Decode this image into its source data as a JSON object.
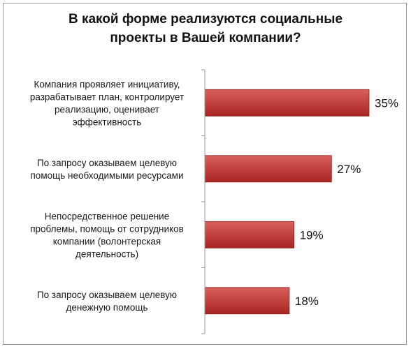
{
  "chart_data": {
    "type": "bar",
    "orientation": "horizontal",
    "title_lines": [
      "В какой форме реализуются социальные",
      "проекты в Вашей компании?"
    ],
    "categories": [
      [
        "Компания проявляет инициативу,",
        "разрабатывает план, контролирует",
        "реализацию, оценивает",
        "эффективность"
      ],
      [
        "По запросу оказываем  целевую",
        "помощь необходимыми ресурсами"
      ],
      [
        "Непосредственное решение",
        "проблемы, помощь от сотрудников",
        "компании (волонтерская",
        "деятельность)"
      ],
      [
        "По запросу оказываем целевую",
        "денежную помощь"
      ]
    ],
    "values": [
      35,
      27,
      19,
      18
    ],
    "value_labels": [
      "35%",
      "27%",
      "19%",
      "18%"
    ],
    "xlim": [
      0,
      40
    ],
    "grid": false,
    "legend": "none",
    "colors": {
      "bar_top": "#d9605c",
      "bar_bottom": "#a82422",
      "bar_edge": "#8c1c1a",
      "axis": "#9a9a9a",
      "frame": "#9a9a9a"
    }
  }
}
